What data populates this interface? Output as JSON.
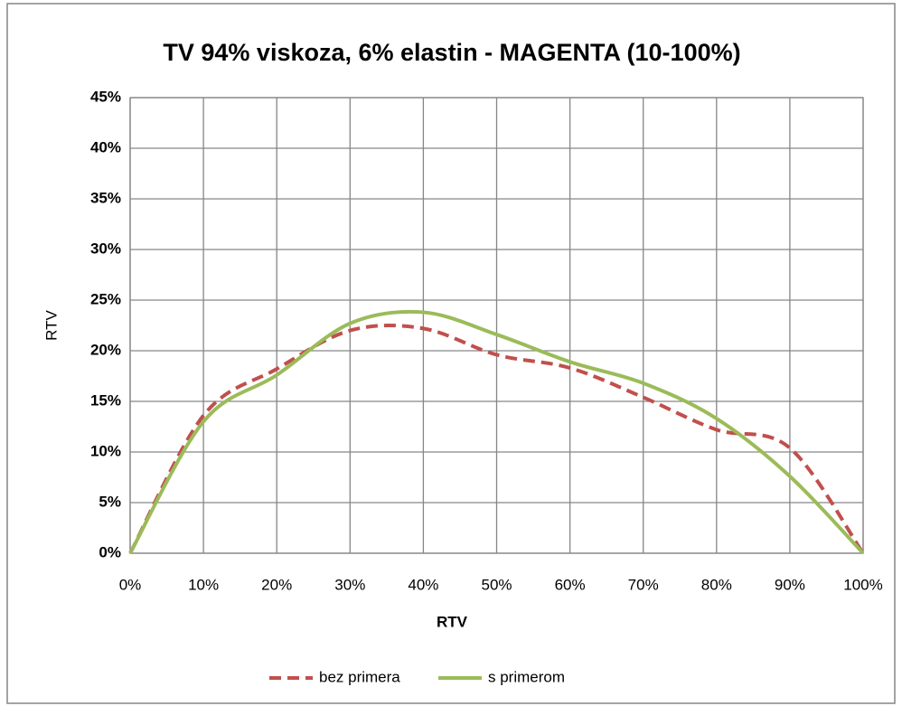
{
  "chart_data": {
    "type": "line",
    "title": "TV 94% viskoza, 6% elastin - MAGENTA (10-100%)",
    "x_label": "RTV",
    "y_label": "RTV",
    "x": [
      0,
      10,
      20,
      30,
      40,
      50,
      60,
      70,
      80,
      90,
      100
    ],
    "series": [
      {
        "name": "bez primera",
        "color": "#c0504d",
        "dashed": true,
        "values": [
          0,
          13.6,
          18.2,
          22,
          22.2,
          19.6,
          18.3,
          15.4,
          12.2,
          10.4,
          0
        ]
      },
      {
        "name": "s primerom",
        "color": "#9bbb59",
        "dashed": false,
        "values": [
          0,
          13,
          17.6,
          22.7,
          23.8,
          21.6,
          18.9,
          16.8,
          13.3,
          7.6,
          0
        ]
      }
    ],
    "smooth": true,
    "xlim": [
      0,
      100
    ],
    "xticks": [
      {
        "value": 0,
        "label": "0%"
      },
      {
        "value": 10,
        "label": "10%"
      },
      {
        "value": 20,
        "label": "20%"
      },
      {
        "value": 30,
        "label": "30%"
      },
      {
        "value": 40,
        "label": "40%"
      },
      {
        "value": 50,
        "label": "50%"
      },
      {
        "value": 60,
        "label": "60%"
      },
      {
        "value": 70,
        "label": "70%"
      },
      {
        "value": 80,
        "label": "80%"
      },
      {
        "value": 90,
        "label": "90%"
      },
      {
        "value": 100,
        "label": "100%"
      }
    ],
    "ylim": [
      0,
      45
    ],
    "yticks": [
      {
        "value": 0,
        "label": "0%"
      },
      {
        "value": 5,
        "label": "5%"
      },
      {
        "value": 10,
        "label": "10%"
      },
      {
        "value": 15,
        "label": "15%"
      },
      {
        "value": 20,
        "label": "20%"
      },
      {
        "value": 25,
        "label": "25%"
      },
      {
        "value": 30,
        "label": "30%"
      },
      {
        "value": 35,
        "label": "35%"
      },
      {
        "value": 40,
        "label": "40%"
      },
      {
        "value": 45,
        "label": "45%"
      }
    ],
    "grid": true,
    "legend": "bottom"
  }
}
